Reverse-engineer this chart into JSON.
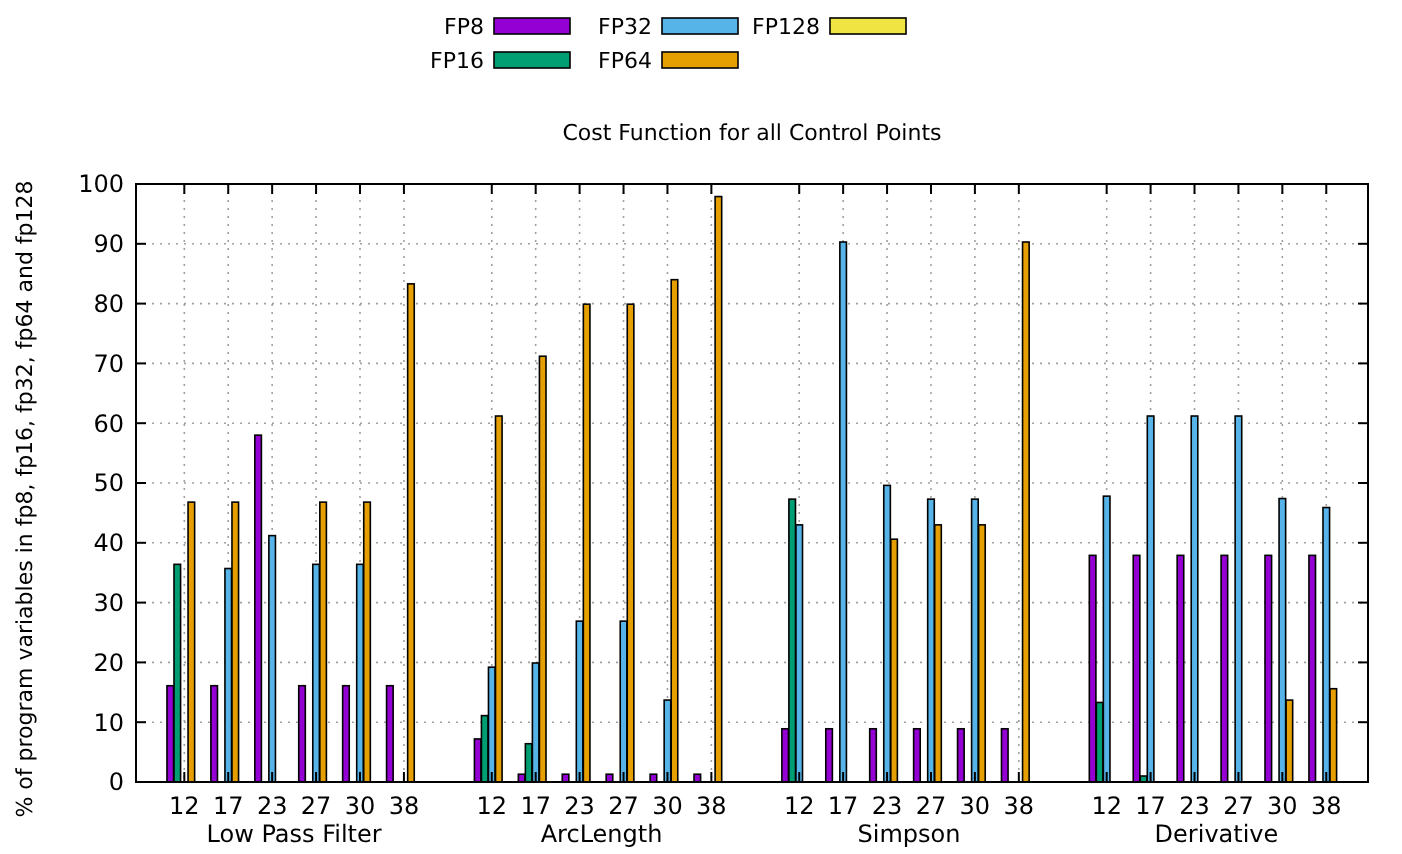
{
  "chart_data": {
    "type": "bar",
    "title": "Cost Function for all Control Points",
    "ylabel": "% of program variables in fp8, fp16, fp32, fp64 and fp128",
    "categories": [
      "12",
      "17",
      "23",
      "27",
      "30",
      "38",
      null,
      "12",
      "17",
      "23",
      "27",
      "30",
      "38",
      null,
      "12",
      "17",
      "23",
      "27",
      "30",
      "38",
      null,
      "12",
      "17",
      "23",
      "27",
      "30",
      "38"
    ],
    "series": [
      {
        "name": "FP8",
        "color": "#9400d3",
        "values": [
          16.1,
          16.1,
          58,
          16.1,
          16.1,
          16.1,
          null,
          7.2,
          1.3,
          1.3,
          1.3,
          1.3,
          1.3,
          null,
          8.9,
          8.9,
          8.9,
          8.9,
          8.9,
          8.9,
          null,
          37.9,
          37.9,
          37.9,
          37.9,
          37.9,
          37.9
        ]
      },
      {
        "name": "FP16",
        "color": "#009e73",
        "values": [
          36.4,
          0,
          0,
          0,
          0,
          0,
          null,
          11.1,
          6.4,
          0,
          0,
          0,
          0,
          null,
          47.3,
          0,
          0,
          0,
          0,
          0,
          null,
          13.3,
          1,
          0,
          0,
          0,
          0
        ]
      },
      {
        "name": "FP32",
        "color": "#56b4e9",
        "values": [
          0,
          35.7,
          41.2,
          36.4,
          36.4,
          0,
          null,
          19.2,
          19.9,
          26.9,
          26.9,
          13.7,
          0,
          null,
          43,
          90.3,
          49.6,
          47.3,
          47.3,
          0,
          null,
          47.8,
          61.2,
          61.2,
          61.2,
          47.4,
          45.9
        ]
      },
      {
        "name": "FP64",
        "color": "#e69f00",
        "values": [
          46.8,
          46.8,
          0,
          46.8,
          46.8,
          83.3,
          null,
          61.2,
          71.2,
          79.9,
          79.9,
          84,
          97.9,
          null,
          0,
          0,
          40.6,
          43,
          43,
          90.3,
          null,
          0,
          0,
          0,
          0,
          13.7,
          15.6
        ]
      },
      {
        "name": "FP128",
        "color": "#f0e442",
        "values": [
          0,
          0,
          0,
          0,
          0,
          0,
          null,
          0,
          0,
          0,
          0,
          0,
          0,
          null,
          0,
          0,
          0,
          0,
          0,
          0,
          null,
          0,
          0,
          0,
          0,
          0,
          0
        ]
      }
    ],
    "annotations": [
      "Low Pass Filter",
      "ArcLength",
      "Simpson",
      "Derivative"
    ],
    "ylim": [
      0,
      100
    ],
    "yticks": [
      0,
      10,
      20,
      30,
      40,
      50,
      60,
      70,
      80,
      90,
      100
    ],
    "grid": true,
    "legend": "top"
  }
}
